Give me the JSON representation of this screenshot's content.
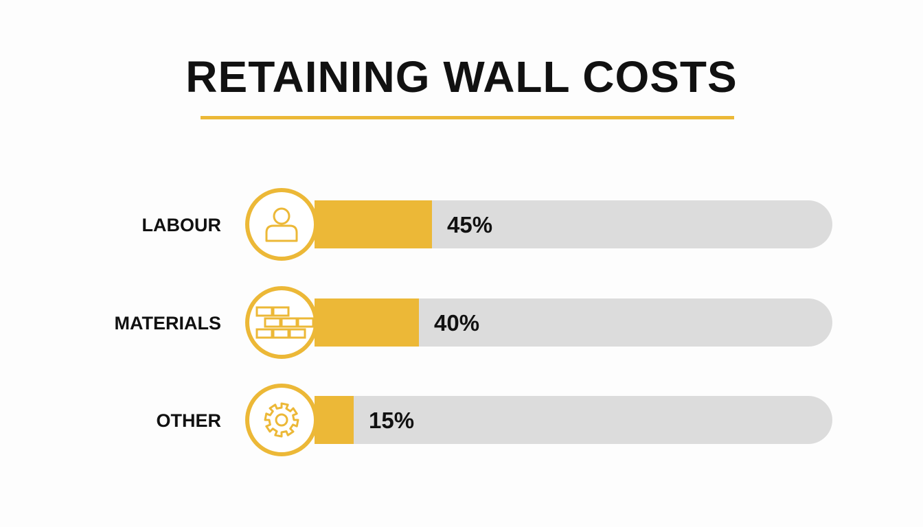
{
  "chart_data": {
    "type": "bar",
    "orientation": "horizontal",
    "title": "RETAINING WALL COSTS",
    "categories": [
      "LABOUR",
      "MATERIALS",
      "OTHER"
    ],
    "values": [
      45,
      40,
      15
    ],
    "value_labels": [
      "45%",
      "40%",
      "15%"
    ],
    "icons": [
      "person-icon",
      "bricks-icon",
      "gear-icon"
    ],
    "xlim": [
      0,
      100
    ],
    "grid": false,
    "colors": {
      "fill": "#ecb837",
      "track": "#dcdcdc",
      "text": "#111111"
    }
  }
}
